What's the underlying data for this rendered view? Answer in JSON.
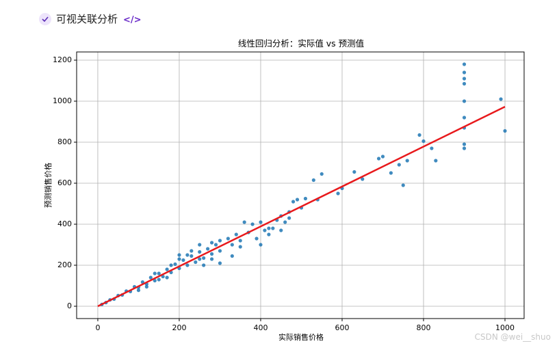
{
  "header": {
    "title": "可视关联分析",
    "code_icon": "</>"
  },
  "chart_data": {
    "type": "scatter",
    "title": "线性回归分析：实际值 vs 预测值",
    "x_label": "实际销售价格",
    "y_label": "预测销售价格",
    "xlim": [
      -52,
      1047
    ],
    "ylim": [
      -60,
      1240
    ],
    "xticks": [
      0,
      200,
      400,
      600,
      800,
      1000
    ],
    "yticks": [
      0,
      200,
      400,
      600,
      800,
      1000,
      1200
    ],
    "grid": true,
    "series": [
      {
        "type": "scatter",
        "color": "#1f77b4",
        "x": [
          10,
          20,
          30,
          40,
          50,
          60,
          70,
          80,
          90,
          100,
          110,
          120,
          130,
          140,
          150,
          160,
          170,
          180,
          190,
          200,
          210,
          220,
          230,
          240,
          250,
          260,
          270,
          280,
          290,
          300,
          100,
          120,
          150,
          180,
          200,
          220,
          250,
          280,
          300,
          320,
          330,
          340,
          350,
          360,
          370,
          380,
          390,
          400,
          410,
          420,
          430,
          440,
          450,
          460,
          470,
          480,
          490,
          500,
          510,
          530,
          540,
          550,
          590,
          600,
          630,
          650,
          690,
          700,
          720,
          740,
          750,
          760,
          790,
          800,
          820,
          830,
          900,
          900,
          900,
          900,
          900,
          900,
          900,
          900,
          900,
          990,
          1000,
          300,
          280,
          330,
          350,
          400,
          420,
          450,
          470,
          250,
          230,
          200,
          260,
          170,
          140
        ],
        "values": [
          9,
          18,
          31,
          35,
          52,
          55,
          74,
          72,
          95,
          92,
          118,
          108,
          140,
          125,
          160,
          145,
          180,
          165,
          205,
          185,
          225,
          200,
          245,
          215,
          265,
          235,
          280,
          255,
          300,
          270,
          78,
          95,
          130,
          200,
          230,
          250,
          230,
          310,
          320,
          330,
          300,
          350,
          320,
          410,
          360,
          400,
          330,
          410,
          370,
          380,
          380,
          420,
          440,
          410,
          460,
          510,
          520,
          480,
          525,
          615,
          520,
          645,
          550,
          575,
          655,
          620,
          720,
          730,
          650,
          690,
          590,
          710,
          835,
          805,
          770,
          710,
          1180,
          1140,
          1110,
          1085,
          1000,
          920,
          870,
          790,
          770,
          1010,
          855,
          210,
          230,
          245,
          290,
          300,
          350,
          370,
          430,
          300,
          270,
          250,
          200,
          140,
          160
        ]
      },
      {
        "type": "line",
        "color": "#e8191c",
        "x": [
          0,
          1000
        ],
        "values": [
          0,
          973
        ]
      }
    ]
  },
  "watermark": "CSDN @wei__shuo"
}
